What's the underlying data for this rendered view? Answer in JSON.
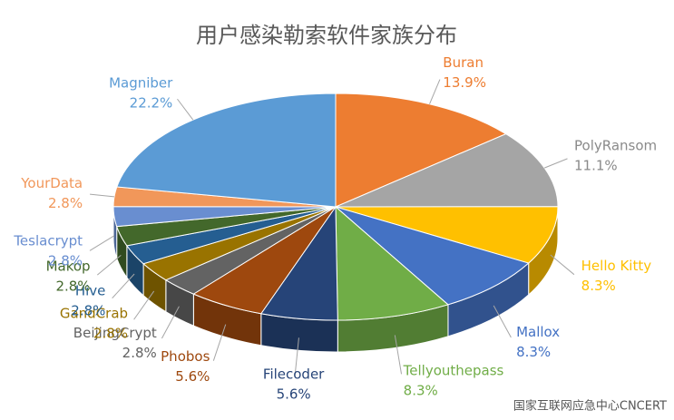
{
  "chart_data": {
    "type": "pie",
    "title": "用户感染勒索软件家族分布",
    "categories": [
      "Buran",
      "PolyRansom",
      "Hello Kitty",
      "Mallox",
      "Tellyouthepass",
      "Filecoder",
      "Phobos",
      "BeijingCrypt",
      "GandCrab",
      "Hive",
      "Makop",
      "Teslacrypt",
      "YourData",
      "Magniber"
    ],
    "values": [
      13.9,
      11.1,
      8.3,
      8.3,
      8.3,
      5.6,
      5.6,
      2.8,
      2.8,
      2.8,
      2.8,
      2.8,
      2.8,
      22.2
    ],
    "value_labels": [
      "13.9%",
      "11.1%",
      "8.3%",
      "8.3%",
      "8.3%",
      "5.6%",
      "5.6%",
      "2.8%",
      "2.8%",
      "2.8%",
      "2.8%",
      "2.8%",
      "2.8%",
      "22.2%"
    ],
    "colors": [
      "#ED7D31",
      "#A5A5A5",
      "#FFC000",
      "#4472C4",
      "#70AD47",
      "#264478",
      "#9E480E",
      "#636363",
      "#997300",
      "#255E91",
      "#43682B",
      "#698ED0",
      "#F1975A",
      "#5B9BD5"
    ]
  },
  "watermark": "国家互联网应急中心CNCERT"
}
